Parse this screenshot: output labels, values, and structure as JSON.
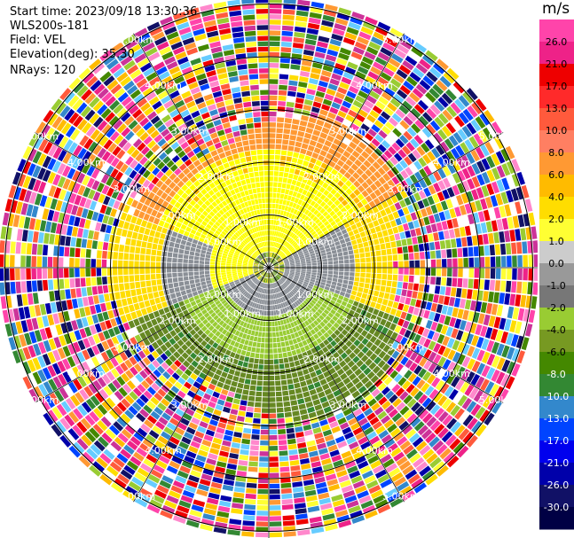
{
  "header": {
    "start_time": "Start time: 2023/09/18 13:30:36",
    "instrument": "WLS200s-181",
    "field": "Field: VEL",
    "elevation": "Elevation(deg): 35.30",
    "nrays": "NRays: 120"
  },
  "colorbar": {
    "unit": "m/s",
    "labels": [
      "26.0",
      "21.0",
      "17.0",
      "13.0",
      "10.0",
      "8.0",
      "6.0",
      "4.0",
      "2.0",
      "1.0",
      "0.0",
      "-1.0",
      "-2.0",
      "-4.0",
      "-6.0",
      "-8.0",
      "-10.0",
      "-13.0",
      "-17.0",
      "-21.0",
      "-26.0",
      "-30.0"
    ],
    "colors": [
      "#ff44aa",
      "#ee2288",
      "#ee0000",
      "#ff2a2a",
      "#ff5a3c",
      "#ff7f62",
      "#ff9933",
      "#ffbb00",
      "#ffdd00",
      "#ffff33",
      "#cccccc",
      "#999999",
      "#777777",
      "#99cc33",
      "#779922",
      "#448800",
      "#338833",
      "#3388cc",
      "#0044ff",
      "#0000ee",
      "#0000aa",
      "#111166",
      "#000044"
    ]
  },
  "chart_data": {
    "type": "polar-ppi",
    "field": "VEL",
    "units": "m/s",
    "nrays": 120,
    "elevation_deg": 35.3,
    "range_rings_km": [
      1.0,
      2.0,
      3.0,
      4.0,
      5.0
    ],
    "range_ring_labels": [
      "1.00km",
      "2.00km",
      "3.00km",
      "4.00km",
      "5.00km"
    ],
    "spokes_deg": [
      0,
      30,
      60,
      90,
      120,
      150,
      180,
      210,
      240,
      270,
      300,
      330
    ],
    "value_range": [
      -30,
      26
    ]
  }
}
